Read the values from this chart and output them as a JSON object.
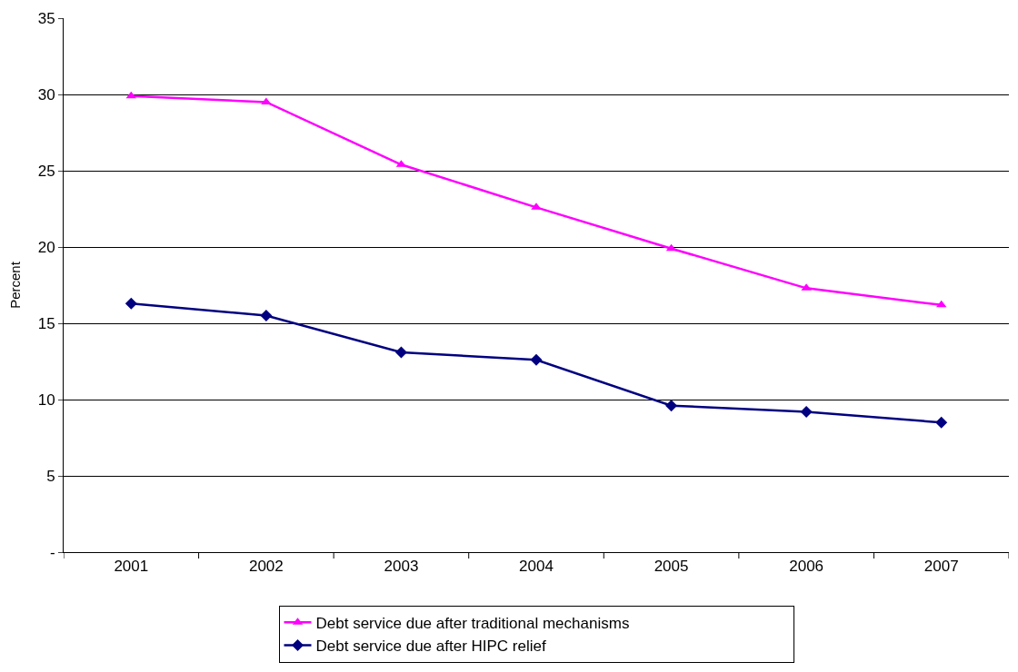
{
  "chart_data": {
    "type": "line",
    "ylabel": "Percent",
    "categories": [
      "2001",
      "2002",
      "2003",
      "2004",
      "2005",
      "2006",
      "2007"
    ],
    "series": [
      {
        "name": "Debt service due after traditional mechanisms",
        "color": "#ff00ff",
        "marker": "triangle",
        "values": [
          29.9,
          29.5,
          25.4,
          22.6,
          19.9,
          17.3,
          16.2
        ]
      },
      {
        "name": "Debt service due after HIPC relief",
        "color": "#000080",
        "marker": "diamond",
        "values": [
          16.3,
          15.5,
          13.1,
          12.6,
          9.6,
          9.2,
          8.5
        ]
      }
    ],
    "ylim": [
      0,
      35
    ],
    "yticks": [
      {
        "value": 0,
        "label": "-"
      },
      5,
      10,
      15,
      20,
      25,
      30,
      35
    ],
    "grid": "y",
    "legend": "bottom",
    "line_style": "solid"
  }
}
